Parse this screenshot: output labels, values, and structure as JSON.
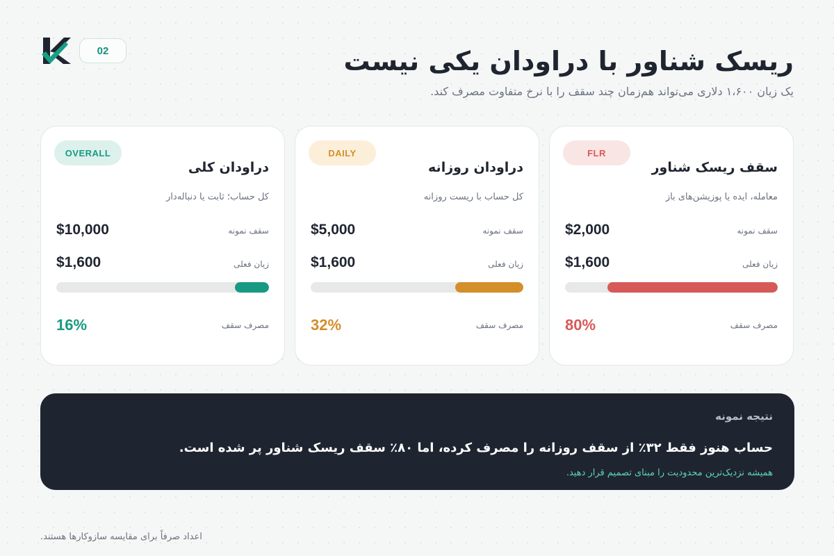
{
  "header": {
    "page_number": "02",
    "title": "ریسک شناور با دراودان یکی نیست",
    "subtitle": "یک زیان ۱،۶۰۰ دلاری می‌تواند هم‌زمان چند سقف را با نرخ متفاوت مصرف کند."
  },
  "cards": [
    {
      "badge": "FLR",
      "title": "سقف ریسک شناور",
      "description": "معامله، ایده یا پوزیشن‌های باز",
      "cap_label": "سقف نمونه",
      "cap_value": "$2,000",
      "loss_label": "زیان فعلی",
      "loss_value": "$1,600",
      "usage_label": "مصرف سقف",
      "usage_percent": "80%",
      "usage_fraction": 0.8,
      "color": "#d65a58",
      "badge_bg": "#f9e5e4"
    },
    {
      "badge": "DAILY",
      "title": "دراودان روزانه",
      "description": "کل حساب با ریست روزانه",
      "cap_label": "سقف نمونه",
      "cap_value": "$5,000",
      "loss_label": "زیان فعلی",
      "loss_value": "$1,600",
      "usage_label": "مصرف سقف",
      "usage_percent": "32%",
      "usage_fraction": 0.32,
      "color": "#d48e2b",
      "badge_bg": "#fcefd9"
    },
    {
      "badge": "OVERALL",
      "title": "دراودان کلی",
      "description": "کل حساب؛ ثابت یا دنباله‌دار",
      "cap_label": "سقف نمونه",
      "cap_value": "$10,000",
      "loss_label": "زیان فعلی",
      "loss_value": "$1,600",
      "usage_label": "مصرف سقف",
      "usage_percent": "16%",
      "usage_fraction": 0.16,
      "color": "#189a82",
      "badge_bg": "#ddf1ec"
    }
  ],
  "result": {
    "heading": "نتیجه نمونه",
    "main": "حساب هنوز فقط ۳۲٪ از سقف روزانه را مصرف کرده، اما ۸۰٪ سقف ریسک شناور پر شده است.",
    "note": "همیشه نزدیک‌ترین محدودیت را مبنای تصمیم قرار دهید."
  },
  "footnote": "اعداد صرفاً برای مقایسه سازوکارها هستند.",
  "icons": {
    "logo": "k-check-logo"
  },
  "colors": {
    "accent": "#17917c",
    "dark_panel": "#1f2530"
  }
}
